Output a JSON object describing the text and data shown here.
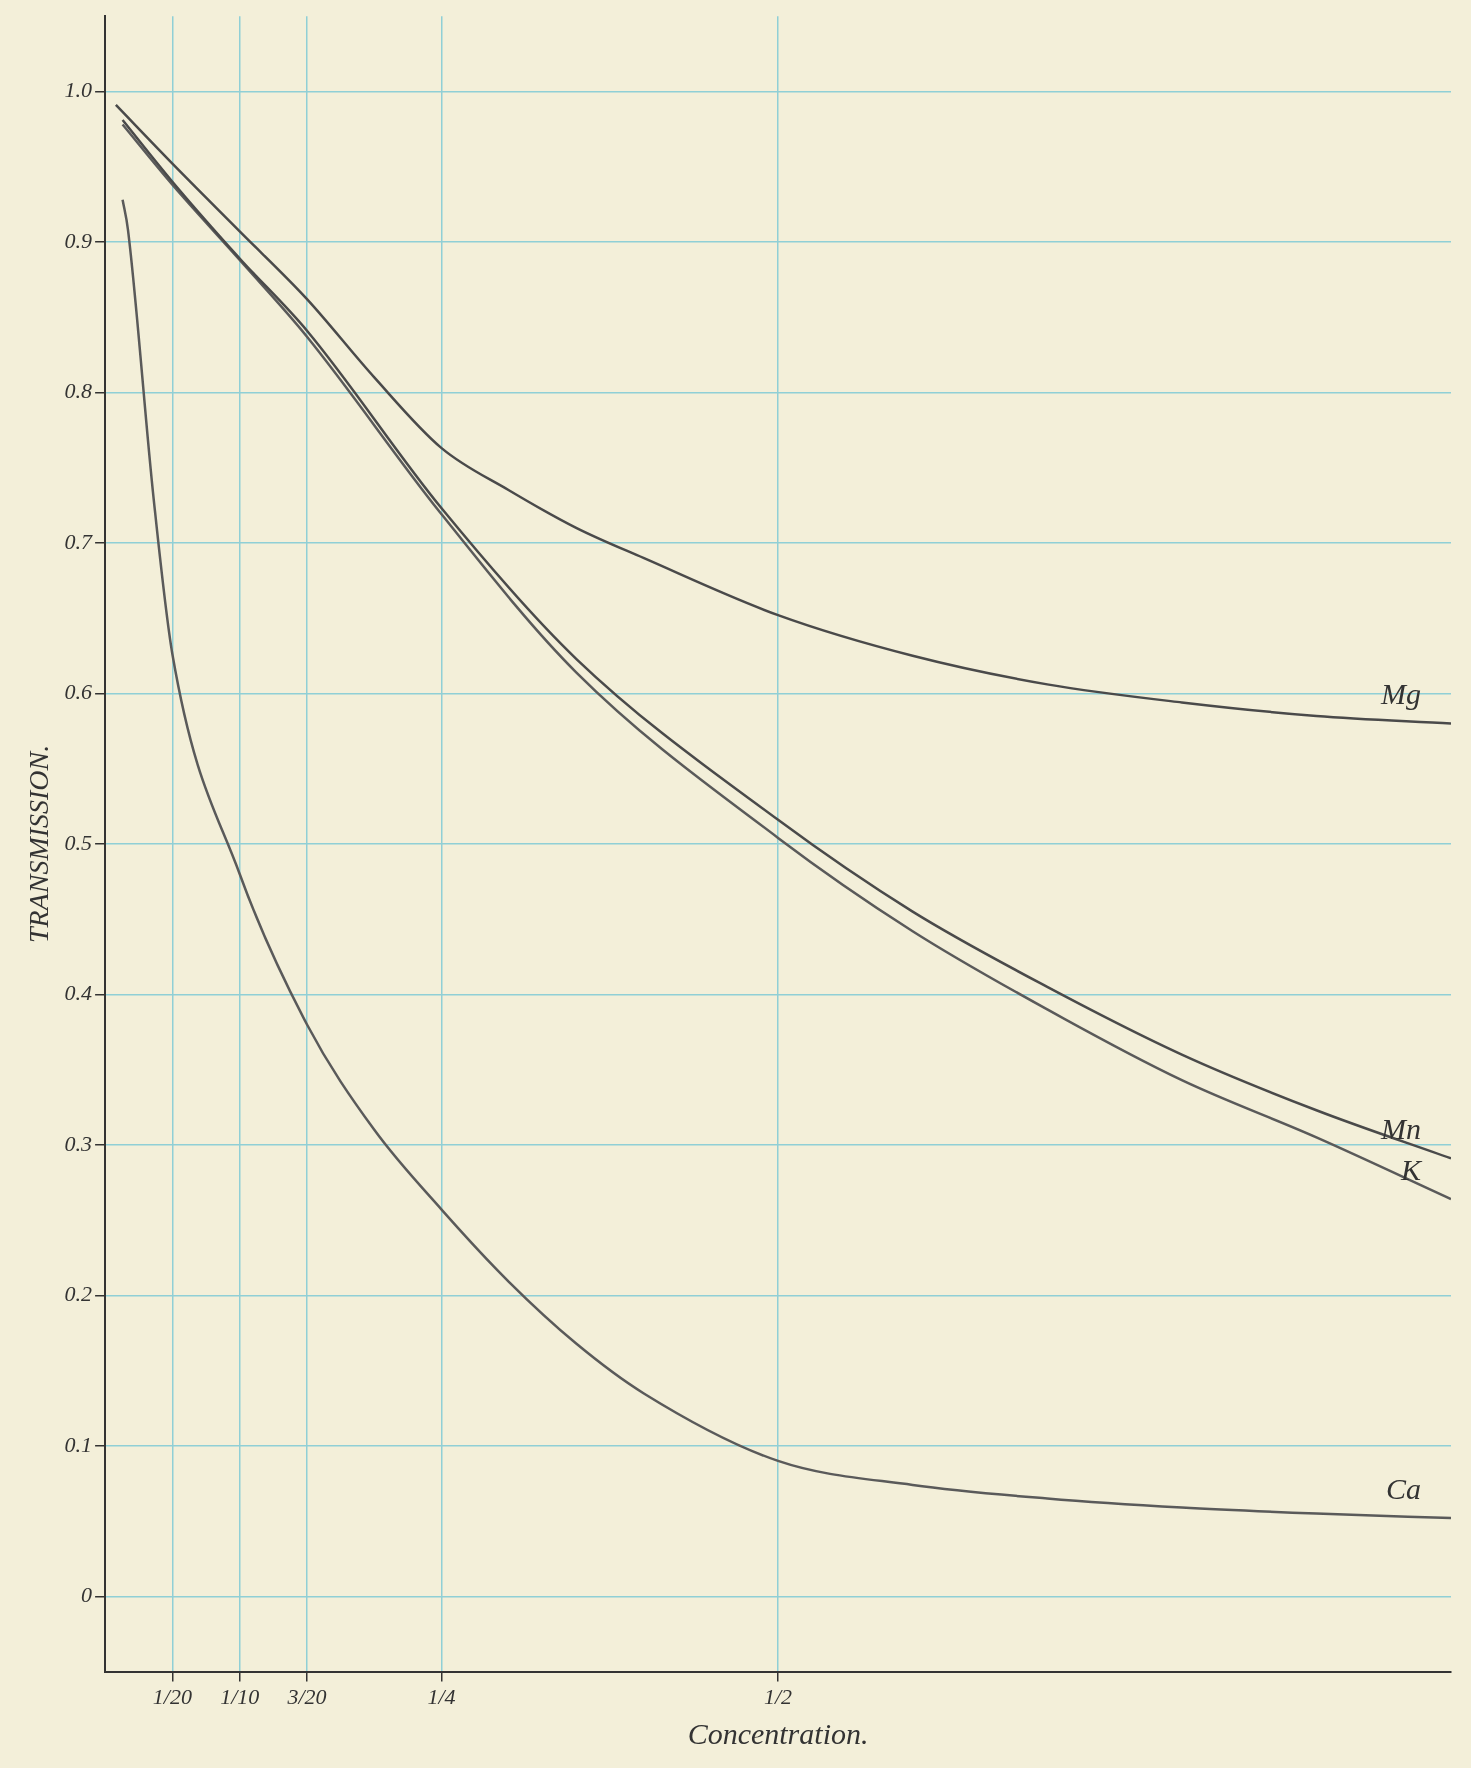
{
  "chart_data": {
    "type": "line",
    "xlabel": "Concentration.",
    "ylabel": "TRANSMISSION.",
    "xlim": [
      0,
      1.0
    ],
    "ylim": [
      -0.05,
      1.05
    ],
    "xticks": [
      {
        "value": 0.05,
        "label": "1/20"
      },
      {
        "value": 0.1,
        "label": "1/10"
      },
      {
        "value": 0.15,
        "label": "3/20"
      },
      {
        "value": 0.25,
        "label": "1/4"
      },
      {
        "value": 0.5,
        "label": "1/2"
      }
    ],
    "yticks": [
      0,
      0.1,
      0.2,
      0.3,
      0.4,
      0.5,
      0.6,
      0.7,
      0.8,
      0.9,
      {
        "value": 1.0,
        "label": "1.0"
      }
    ],
    "grid": true,
    "legend": false,
    "marker": "none",
    "line_style": "solid",
    "series": [
      {
        "name": "Mg",
        "color": "#4a4a4a",
        "x": [
          0.008,
          0.05,
          0.1,
          0.15,
          0.2,
          0.25,
          0.3,
          0.35,
          0.4,
          0.5,
          0.6,
          0.7,
          0.8,
          0.9,
          1.0
        ],
        "values": [
          0.991,
          0.952,
          0.907,
          0.862,
          0.81,
          0.763,
          0.735,
          0.71,
          0.69,
          0.652,
          0.625,
          0.606,
          0.594,
          0.585,
          0.58
        ]
      },
      {
        "name": "Mn",
        "color": "#4a4a4a",
        "x": [
          0.013,
          0.05,
          0.1,
          0.15,
          0.25,
          0.35,
          0.5,
          0.6,
          0.7,
          0.8,
          0.9,
          1.0
        ],
        "values": [
          0.981,
          0.94,
          0.889,
          0.841,
          0.723,
          0.623,
          0.516,
          0.455,
          0.405,
          0.36,
          0.323,
          0.291
        ]
      },
      {
        "name": "K",
        "color": "#5a5a5a",
        "x": [
          0.013,
          0.05,
          0.1,
          0.15,
          0.25,
          0.35,
          0.5,
          0.6,
          0.7,
          0.8,
          0.9,
          1.0
        ],
        "values": [
          0.978,
          0.938,
          0.888,
          0.837,
          0.719,
          0.614,
          0.504,
          0.442,
          0.39,
          0.343,
          0.305,
          0.264
        ]
      },
      {
        "name": "Ca",
        "color": "#5a5a5a",
        "x": [
          0.013,
          0.017,
          0.036,
          0.05,
          0.1,
          0.15,
          0.2,
          0.25,
          0.3,
          0.35,
          0.4,
          0.5,
          0.6,
          0.7,
          0.8,
          0.9,
          1.0
        ],
        "values": [
          0.928,
          0.908,
          0.73,
          0.626,
          0.48,
          0.38,
          0.31,
          0.257,
          0.209,
          0.168,
          0.135,
          0.09,
          0.074,
          0.065,
          0.059,
          0.055,
          0.052
        ]
      }
    ]
  }
}
